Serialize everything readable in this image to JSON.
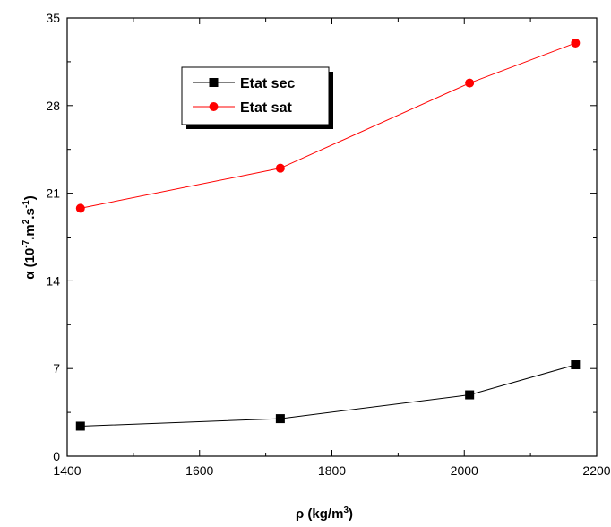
{
  "chart_data": {
    "type": "line",
    "title": "",
    "xlabel": "ρ (kg/m3)",
    "xlabel_parts": {
      "base": "ρ (kg/m",
      "sup": "3",
      "end": ")"
    },
    "ylabel": "α (10-7.m2.s-1)",
    "ylabel_parts": {
      "p1": "α (10",
      "s1": "-7",
      "p2": ".m",
      "s2": "2",
      "p3": ".s",
      "s3": "-1",
      "p4": ")"
    },
    "xlim": [
      1400,
      2200
    ],
    "ylim": [
      0,
      35
    ],
    "xticks": [
      1400,
      1600,
      1800,
      2000,
      2200
    ],
    "yticks": [
      0,
      7,
      14,
      21,
      28,
      35
    ],
    "grid": false,
    "legend_position": "top-left",
    "series": [
      {
        "name": "Etat sec",
        "color": "#000000",
        "marker": "square",
        "x": [
          1420,
          1722,
          2008,
          2168
        ],
        "y": [
          2.4,
          3.0,
          4.9,
          7.3
        ]
      },
      {
        "name": "Etat sat",
        "color": "#ff0000",
        "marker": "circle",
        "x": [
          1420,
          1722,
          2008,
          2168
        ],
        "y": [
          19.8,
          23.0,
          29.8,
          33.0
        ]
      }
    ]
  }
}
